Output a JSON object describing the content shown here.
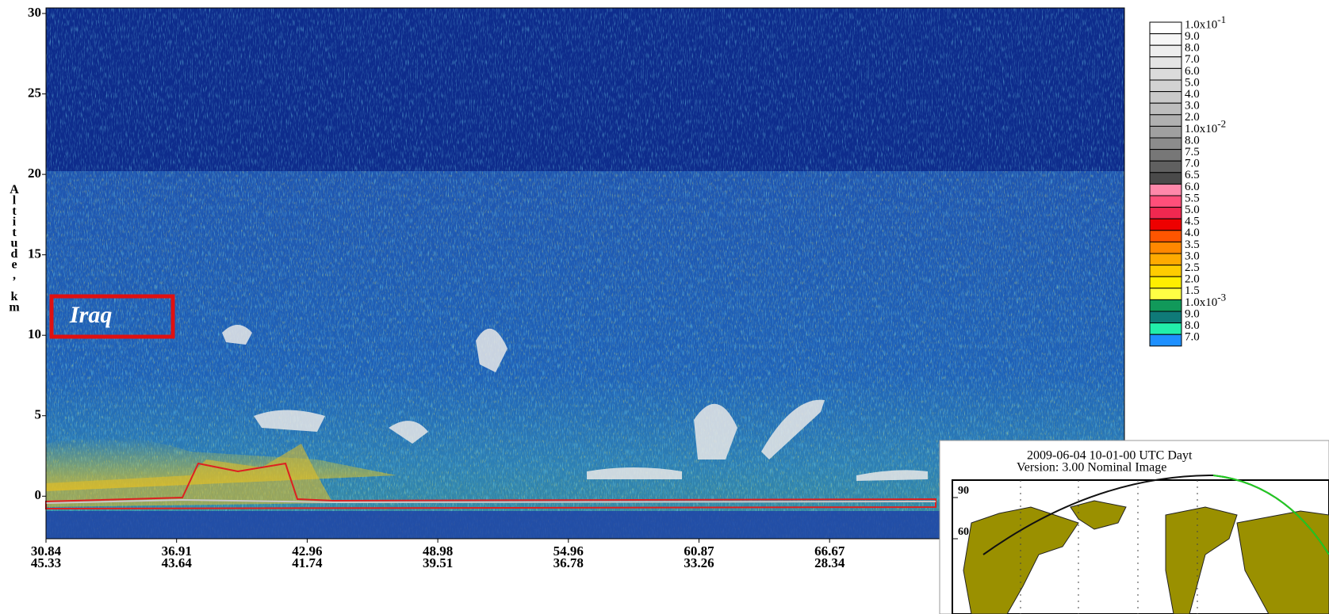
{
  "chart_data": {
    "type": "curtain",
    "y_label": "Altitude, km",
    "ylim": [
      -2.3,
      30
    ],
    "yticks": [
      0,
      5,
      10,
      15,
      20,
      25,
      30
    ],
    "x_labels": [
      {
        "lat": "30.84",
        "lon": "45.33"
      },
      {
        "lat": "36.91",
        "lon": "43.64"
      },
      {
        "lat": "42.96",
        "lon": "41.74"
      },
      {
        "lat": "48.98",
        "lon": "39.51"
      },
      {
        "lat": "54.96",
        "lon": "36.78"
      },
      {
        "lat": "60.87",
        "lon": "33.26"
      },
      {
        "lat": "66.67",
        "lon": "28.34"
      }
    ],
    "annotation": "Iraq",
    "colorbar": [
      {
        "label": "1.0x10",
        "exp": "-1",
        "color": "#ffffff"
      },
      {
        "label": "9.0",
        "color": "#f6f6f6"
      },
      {
        "label": "8.0",
        "color": "#ededed"
      },
      {
        "label": "7.0",
        "color": "#e4e4e4"
      },
      {
        "label": "6.0",
        "color": "#dbdbdb"
      },
      {
        "label": "5.0",
        "color": "#d2d2d2"
      },
      {
        "label": "4.0",
        "color": "#c9c9c9"
      },
      {
        "label": "3.0",
        "color": "#bdbdbd"
      },
      {
        "label": "2.0",
        "color": "#b0b0b0"
      },
      {
        "label": "1.0x10",
        "exp": "-2",
        "color": "#a0a0a0"
      },
      {
        "label": "8.0",
        "color": "#8c8c8c"
      },
      {
        "label": "7.5",
        "color": "#777777"
      },
      {
        "label": "7.0",
        "color": "#606060"
      },
      {
        "label": "6.5",
        "color": "#4a4a4a"
      },
      {
        "label": "6.0",
        "color": "#ff88aa"
      },
      {
        "label": "5.5",
        "color": "#ff4f7a"
      },
      {
        "label": "5.0",
        "color": "#f02850"
      },
      {
        "label": "4.5",
        "color": "#ee0000"
      },
      {
        "label": "4.0",
        "color": "#ff5500"
      },
      {
        "label": "3.5",
        "color": "#ff8800"
      },
      {
        "label": "3.0",
        "color": "#ffaa00"
      },
      {
        "label": "2.5",
        "color": "#ffcc00"
      },
      {
        "label": "2.0",
        "color": "#ffee00"
      },
      {
        "label": "1.5",
        "color": "#ffff44"
      },
      {
        "label": "1.0x10",
        "exp": "-3",
        "color": "#11995a"
      },
      {
        "label": "9.0",
        "color": "#0f7a78"
      },
      {
        "label": "8.0",
        "color": "#22eeaa"
      },
      {
        "label": "7.0",
        "color": "#1e90ff"
      }
    ],
    "inset": {
      "title": "2009-06-04  10-01-00 UTC Dayt",
      "subtitle": "Version: 3.00  Nominal    Image",
      "lat_ticks": [
        90,
        60
      ]
    }
  }
}
